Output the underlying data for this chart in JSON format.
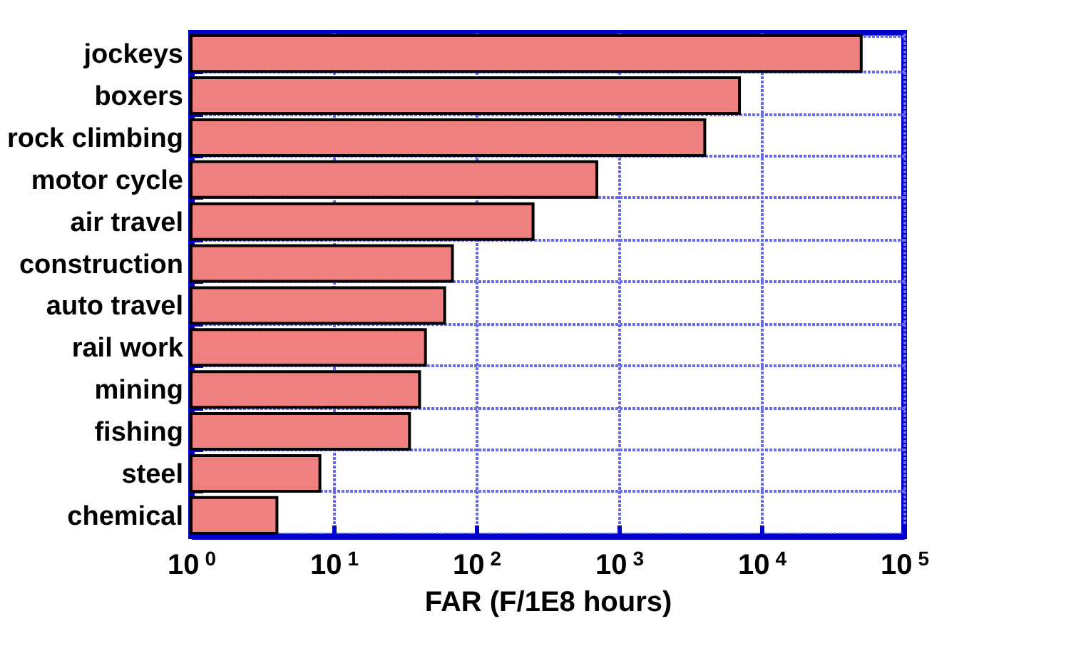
{
  "chart_data": {
    "type": "bar",
    "orientation": "horizontal",
    "log": "x",
    "xlabel": "FAR (F/1E8 hours)",
    "categories": [
      "jockeys",
      "boxers",
      "rock climbing",
      "motor cycle",
      "air travel ",
      "construction",
      "auto travel ",
      "rail work",
      "mining",
      "fishing",
      "steel",
      "chemical"
    ],
    "values": [
      50000,
      7000,
      4000,
      700,
      250,
      68,
      60,
      44,
      40,
      34,
      8,
      4
    ],
    "color": "#f08080",
    "xlim": [
      1,
      100000
    ],
    "xticks": [
      {
        "value": 1,
        "label": "10$^{0}$"
      },
      {
        "value": 10,
        "label": "10$^{1}$"
      },
      {
        "value": 100,
        "label": "10$^{2}$"
      },
      {
        "value": 1000,
        "label": "10$^{3}$"
      },
      {
        "value": 10000,
        "label": "10$^{4}$"
      },
      {
        "value": 100000,
        "label": "10$^{5}$"
      }
    ],
    "grid": true
  }
}
